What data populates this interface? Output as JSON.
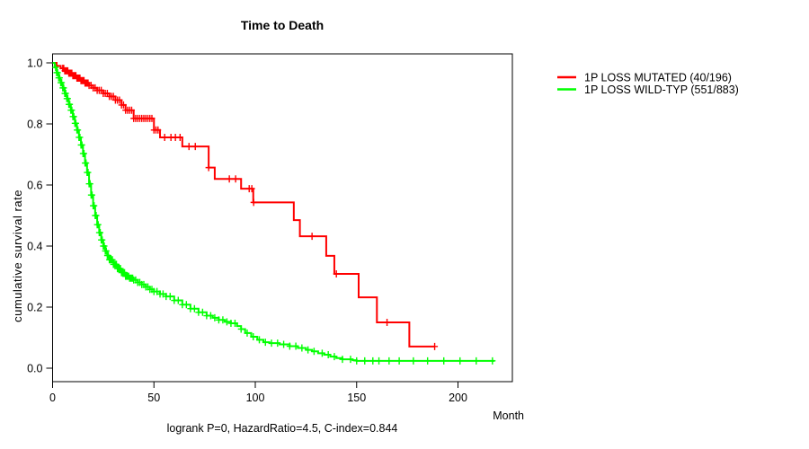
{
  "chart_data": {
    "type": "line",
    "subtype": "kaplan-meier-step",
    "title": "Time to Death",
    "xlabel": "Month",
    "ylabel": "cumulative survival rate",
    "footer": "logrank P=0, HazardRatio=4.5, C-index=0.844",
    "xlim": [
      0,
      227
    ],
    "ylim": [
      0,
      1
    ],
    "xticks": [
      0,
      50,
      100,
      150,
      200
    ],
    "yticks": [
      0.0,
      0.2,
      0.4,
      0.6,
      0.8,
      1.0
    ],
    "grid": false,
    "legend_position": "right-outside",
    "axis_color": "#000000",
    "series": [
      {
        "name": "1P LOSS MUTATED (40/196)",
        "color": "#ff0000",
        "steps": [
          [
            0,
            1.0
          ],
          [
            2,
            0.99
          ],
          [
            4,
            0.982
          ],
          [
            6,
            0.974
          ],
          [
            8,
            0.966
          ],
          [
            10,
            0.958
          ],
          [
            12,
            0.95
          ],
          [
            14,
            0.942
          ],
          [
            16,
            0.934
          ],
          [
            18,
            0.926
          ],
          [
            20,
            0.918
          ],
          [
            22,
            0.91
          ],
          [
            25,
            0.9
          ],
          [
            28,
            0.89
          ],
          [
            31,
            0.878
          ],
          [
            34,
            0.862
          ],
          [
            36,
            0.845
          ],
          [
            40,
            0.818
          ],
          [
            50,
            0.78
          ],
          [
            53,
            0.756
          ],
          [
            64,
            0.726
          ],
          [
            77,
            0.657
          ],
          [
            80,
            0.62
          ],
          [
            93,
            0.588
          ],
          [
            99,
            0.543
          ],
          [
            119,
            0.485
          ],
          [
            122,
            0.432
          ],
          [
            135,
            0.368
          ],
          [
            139,
            0.309
          ],
          [
            151,
            0.232
          ],
          [
            160,
            0.15
          ],
          [
            176,
            0.071
          ]
        ],
        "end_time": 188.5,
        "censor_times": [
          5,
          5.5,
          6,
          6.5,
          7,
          7.5,
          8,
          8.5,
          9,
          9.5,
          10,
          10.5,
          11,
          11.5,
          12,
          12.5,
          13,
          13.5,
          14,
          14.5,
          15,
          15.5,
          16,
          16.5,
          17,
          17.5,
          18,
          19,
          20,
          21,
          22,
          23,
          24,
          25,
          26,
          27,
          28,
          29,
          30,
          31,
          32,
          33,
          34,
          35,
          36,
          37,
          38,
          39,
          40,
          41,
          42,
          43,
          44,
          45,
          46,
          47,
          48,
          49,
          50,
          51,
          52,
          55.3,
          58.4,
          60.6,
          62.9,
          67.3,
          70.4,
          77,
          87.2,
          90.3,
          97,
          98.3,
          99.2,
          128,
          140,
          165,
          188.5
        ]
      },
      {
        "name": "1P LOSS WILD-TYP (551/883)",
        "color": "#00ff00",
        "steps": [
          [
            0,
            1.0
          ],
          [
            1,
            0.985
          ],
          [
            2,
            0.968
          ],
          [
            3,
            0.951
          ],
          [
            4,
            0.935
          ],
          [
            5,
            0.918
          ],
          [
            6,
            0.9
          ],
          [
            7,
            0.883
          ],
          [
            8,
            0.864
          ],
          [
            9,
            0.845
          ],
          [
            10,
            0.824
          ],
          [
            11,
            0.802
          ],
          [
            12,
            0.78
          ],
          [
            13,
            0.756
          ],
          [
            14,
            0.731
          ],
          [
            15,
            0.703
          ],
          [
            16,
            0.672
          ],
          [
            17,
            0.641
          ],
          [
            18,
            0.604
          ],
          [
            19,
            0.567
          ],
          [
            20,
            0.532
          ],
          [
            21,
            0.5
          ],
          [
            22,
            0.47
          ],
          [
            23,
            0.444
          ],
          [
            24,
            0.42
          ],
          [
            25,
            0.4
          ],
          [
            26,
            0.384
          ],
          [
            27,
            0.369
          ],
          [
            28,
            0.355
          ],
          [
            30,
            0.34
          ],
          [
            32,
            0.326
          ],
          [
            34,
            0.313
          ],
          [
            36,
            0.301
          ],
          [
            38,
            0.295
          ],
          [
            40,
            0.289
          ],
          [
            42,
            0.281
          ],
          [
            44,
            0.274
          ],
          [
            46,
            0.266
          ],
          [
            48,
            0.258
          ],
          [
            50,
            0.251
          ],
          [
            53,
            0.243
          ],
          [
            56,
            0.235
          ],
          [
            60,
            0.222
          ],
          [
            64,
            0.208
          ],
          [
            68,
            0.195
          ],
          [
            72,
            0.183
          ],
          [
            76,
            0.172
          ],
          [
            79,
            0.165
          ],
          [
            82,
            0.158
          ],
          [
            85,
            0.152
          ],
          [
            88,
            0.147
          ],
          [
            91,
            0.138
          ],
          [
            93,
            0.128
          ],
          [
            95,
            0.115
          ],
          [
            98,
            0.103
          ],
          [
            101,
            0.093
          ],
          [
            104,
            0.085
          ],
          [
            107,
            0.082
          ],
          [
            112,
            0.078
          ],
          [
            117,
            0.072
          ],
          [
            121,
            0.066
          ],
          [
            125,
            0.06
          ],
          [
            128,
            0.055
          ],
          [
            131,
            0.049
          ],
          [
            134,
            0.044
          ],
          [
            137,
            0.038
          ],
          [
            140,
            0.033
          ],
          [
            143,
            0.029
          ],
          [
            148,
            0.026
          ],
          [
            150,
            0.024
          ]
        ],
        "end_time": 218,
        "censor_times": [
          1.5,
          2,
          2.5,
          3,
          3.5,
          4,
          4.5,
          5,
          5.5,
          6,
          6.5,
          7,
          7.5,
          8,
          8.5,
          9,
          9.5,
          10,
          10.5,
          11,
          11.5,
          12,
          12.5,
          13,
          13.5,
          14,
          14.5,
          15,
          15.5,
          16,
          16.5,
          17,
          17.5,
          18,
          18.5,
          19,
          19.5,
          20,
          20.5,
          21,
          21.5,
          22,
          22.5,
          23,
          23.5,
          24,
          24.5,
          25,
          25.5,
          26,
          26.5,
          27,
          27.5,
          28,
          28.5,
          29,
          29.5,
          30,
          30.5,
          31,
          31.5,
          32,
          32.5,
          33,
          33.5,
          34,
          34.5,
          35,
          35.5,
          36,
          36.5,
          37,
          37.5,
          38,
          38.5,
          39,
          39.5,
          40,
          41,
          42,
          43,
          44,
          45,
          46,
          47,
          48,
          49,
          50,
          51.5,
          53,
          54.5,
          56,
          58,
          60,
          62,
          64,
          66,
          68,
          70,
          72,
          74,
          76,
          78,
          80,
          82,
          84,
          86,
          88,
          90,
          93,
          96,
          99,
          102,
          105,
          108,
          111,
          114,
          117,
          120,
          123,
          126,
          129,
          133,
          136,
          139,
          143,
          147,
          150,
          154,
          158,
          161,
          166,
          171,
          178,
          185,
          193,
          201,
          209,
          217
        ]
      }
    ]
  }
}
